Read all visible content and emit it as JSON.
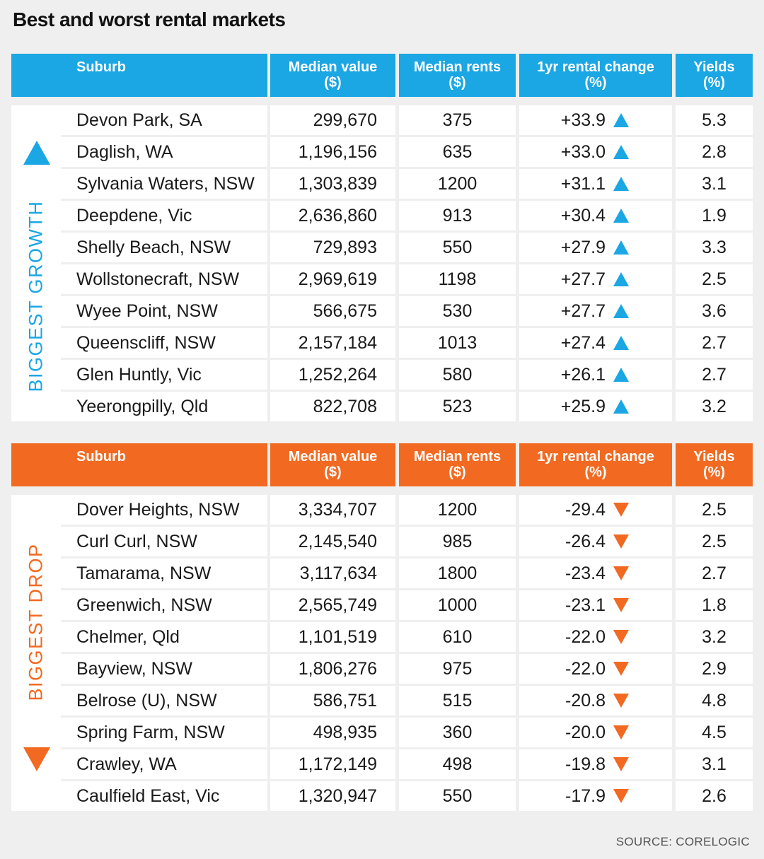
{
  "title": "Best and worst rental markets",
  "source": "SOURCE: CORELOGIC",
  "colors": {
    "growth": "#1ba6e4",
    "drop": "#f26a21",
    "background": "#efefef"
  },
  "columns": {
    "suburb": "Suburb",
    "median_value": [
      "Median value",
      "($)"
    ],
    "median_rents": [
      "Median rents",
      "($)"
    ],
    "rental_change": [
      "1yr rental change",
      "(%)"
    ],
    "yields": [
      "Yields",
      "(%)"
    ]
  },
  "chart_data": {
    "type": "table",
    "title": "Best and worst rental markets",
    "columns": [
      "Suburb",
      "Median value ($)",
      "Median rents ($)",
      "1yr rental change (%)",
      "Yields (%)"
    ],
    "groups": [
      {
        "label": "BIGGEST GROWTH",
        "direction": "up",
        "rows": [
          [
            "Devon Park, SA",
            "299,670",
            "375",
            "+33.9",
            "5.3"
          ],
          [
            "Daglish, WA",
            "1,196,156",
            "635",
            "+33.0",
            "2.8"
          ],
          [
            "Sylvania Waters, NSW",
            "1,303,839",
            "1200",
            "+31.1",
            "3.1"
          ],
          [
            "Deepdene, Vic",
            "2,636,860",
            "913",
            "+30.4",
            "1.9"
          ],
          [
            "Shelly Beach, NSW",
            "729,893",
            "550",
            "+27.9",
            "3.3"
          ],
          [
            "Wollstonecraft, NSW",
            "2,969,619",
            "1198",
            "+27.7",
            "2.5"
          ],
          [
            "Wyee Point, NSW",
            "566,675",
            "530",
            "+27.7",
            "3.6"
          ],
          [
            "Queenscliff, NSW",
            "2,157,184",
            "1013",
            "+27.4",
            "2.7"
          ],
          [
            "Glen Huntly, Vic",
            "1,252,264",
            "580",
            "+26.1",
            "2.7"
          ],
          [
            "Yeerongpilly, Qld",
            "822,708",
            "523",
            "+25.9",
            "3.2"
          ]
        ]
      },
      {
        "label": "BIGGEST DROP",
        "direction": "down",
        "rows": [
          [
            "Dover Heights, NSW",
            "3,334,707",
            "1200",
            "-29.4",
            "2.5"
          ],
          [
            "Curl Curl, NSW",
            "2,145,540",
            "985",
            "-26.4",
            "2.5"
          ],
          [
            "Tamarama, NSW",
            "3,117,634",
            "1800",
            "-23.4",
            "2.7"
          ],
          [
            "Greenwich, NSW",
            "2,565,749",
            "1000",
            "-23.1",
            "1.8"
          ],
          [
            "Chelmer, Qld",
            "1,101,519",
            "610",
            "-22.0",
            "3.2"
          ],
          [
            "Bayview, NSW",
            "1,806,276",
            "975",
            "-22.0",
            "2.9"
          ],
          [
            "Belrose (U), NSW",
            "586,751",
            "515",
            "-20.8",
            "4.8"
          ],
          [
            "Spring Farm, NSW",
            "498,935",
            "360",
            "-20.0",
            "4.5"
          ],
          [
            "Crawley, WA",
            "1,172,149",
            "498",
            "-19.8",
            "3.1"
          ],
          [
            "Caulfield East, Vic",
            "1,320,947",
            "550",
            "-17.9",
            "2.6"
          ]
        ]
      }
    ]
  }
}
